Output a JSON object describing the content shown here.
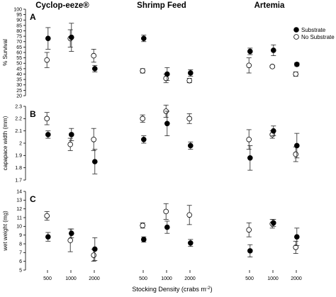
{
  "chart_data": {
    "type": "scatter",
    "column_titles": [
      "Cyclop-eeze®",
      "Shrimp Feed",
      "Artemia"
    ],
    "x_categories": [
      "500",
      "1000",
      "2000"
    ],
    "xlabel_prefix": "Stocking Density (crabs m",
    "xlabel_suffix": ")",
    "xlabel_superscript": "-2",
    "legend": {
      "placement": "top-right",
      "entries": [
        {
          "label": "Substrate",
          "marker": "filled"
        },
        {
          "label": "No Substrate",
          "marker": "open"
        }
      ]
    },
    "rows": [
      {
        "panel": "A",
        "ylabel": "% Survival",
        "ylim": [
          20,
          100
        ],
        "yticks": [
          "20",
          "25",
          "30",
          "35",
          "40",
          "45",
          "50",
          "55",
          "60",
          "65",
          "70",
          "75",
          "80",
          "85",
          "90",
          "95",
          "100"
        ],
        "data": [
          {
            "substrate": [
              {
                "y": 73,
                "err": 10
              },
              {
                "y": 74,
                "err": 13
              },
              {
                "y": 45,
                "err": 3
              }
            ],
            "no_substrate": [
              {
                "y": 53,
                "err": 7
              },
              {
                "y": 73,
                "err": 8
              },
              {
                "y": 57,
                "err": 6
              }
            ]
          },
          {
            "substrate": [
              {
                "y": 73,
                "err": 3
              },
              {
                "y": 40,
                "err": 6
              },
              {
                "y": 41,
                "err": 3
              }
            ],
            "no_substrate": [
              {
                "y": 43,
                "err": 2
              },
              {
                "y": 36,
                "err": 4
              },
              {
                "y": 34,
                "err": 2
              }
            ]
          },
          {
            "substrate": [
              {
                "y": 61,
                "err": 3
              },
              {
                "y": 62,
                "err": 5
              },
              {
                "y": 49,
                "err": 1.5
              }
            ],
            "no_substrate": [
              {
                "y": 48,
                "err": 7
              },
              {
                "y": 47,
                "err": 1
              },
              {
                "y": 40,
                "err": 2
              }
            ]
          }
        ]
      },
      {
        "panel": "B",
        "ylabel": "capapace width (mm)",
        "ylim": [
          1.7,
          2.3
        ],
        "yticks": [
          "1.7",
          "1.8",
          "1.9",
          "2",
          "2.1",
          "2.2",
          "2.3"
        ],
        "data": [
          {
            "substrate": [
              {
                "y": 2.07,
                "err": 0.03
              },
              {
                "y": 2.07,
                "err": 0.05
              },
              {
                "y": 1.85,
                "err": 0.1
              }
            ],
            "no_substrate": [
              {
                "y": 2.2,
                "err": 0.05
              },
              {
                "y": 1.99,
                "err": 0.05
              },
              {
                "y": 2.03,
                "err": 0.09
              }
            ]
          },
          {
            "substrate": [
              {
                "y": 2.03,
                "err": 0.03
              },
              {
                "y": 2.16,
                "err": 0.1
              },
              {
                "y": 1.98,
                "err": 0.03
              }
            ],
            "no_substrate": [
              {
                "y": 2.2,
                "err": 0.03
              },
              {
                "y": 2.26,
                "err": 0.05
              },
              {
                "y": 2.2,
                "err": 0.04
              }
            ]
          },
          {
            "substrate": [
              {
                "y": 1.88,
                "err": 0.1
              },
              {
                "y": 2.1,
                "err": 0.04
              },
              {
                "y": 1.98,
                "err": 0.1
              }
            ],
            "no_substrate": [
              {
                "y": 2.03,
                "err": 0.08
              },
              {
                "y": 2.07,
                "err": 0.03
              },
              {
                "y": 1.91,
                "err": 0.06
              }
            ]
          }
        ]
      },
      {
        "panel": "C",
        "ylabel": "wet weight (mg)",
        "ylim": [
          5,
          14
        ],
        "yticks": [
          "5",
          "6",
          "7",
          "8",
          "9",
          "10",
          "11",
          "12",
          "13",
          "14"
        ],
        "data": [
          {
            "substrate": [
              {
                "y": 8.8,
                "err": 0.5
              },
              {
                "y": 9.2,
                "err": 0.5
              },
              {
                "y": 7.4,
                "err": 1.3
              }
            ],
            "no_substrate": [
              {
                "y": 11.2,
                "err": 0.5
              },
              {
                "y": 8.4,
                "err": 1.3
              },
              {
                "y": 6.7,
                "err": 0.7
              }
            ]
          },
          {
            "substrate": [
              {
                "y": 8.5,
                "err": 0.3
              },
              {
                "y": 9.9,
                "err": 0.7
              },
              {
                "y": 8.1,
                "err": 0.4
              }
            ],
            "no_substrate": [
              {
                "y": 10.1,
                "err": 0.3
              },
              {
                "y": 11.7,
                "err": 0.9
              },
              {
                "y": 11.3,
                "err": 1.1
              }
            ]
          },
          {
            "substrate": [
              {
                "y": 7.2,
                "err": 0.7
              },
              {
                "y": 10.4,
                "err": 0.4
              },
              {
                "y": 8.8,
                "err": 1.0
              }
            ],
            "no_substrate": [
              {
                "y": 9.6,
                "err": 0.8
              },
              {
                "y": 10.3,
                "err": 0.5
              },
              {
                "y": 7.6,
                "err": 0.7
              }
            ]
          }
        ]
      }
    ]
  }
}
